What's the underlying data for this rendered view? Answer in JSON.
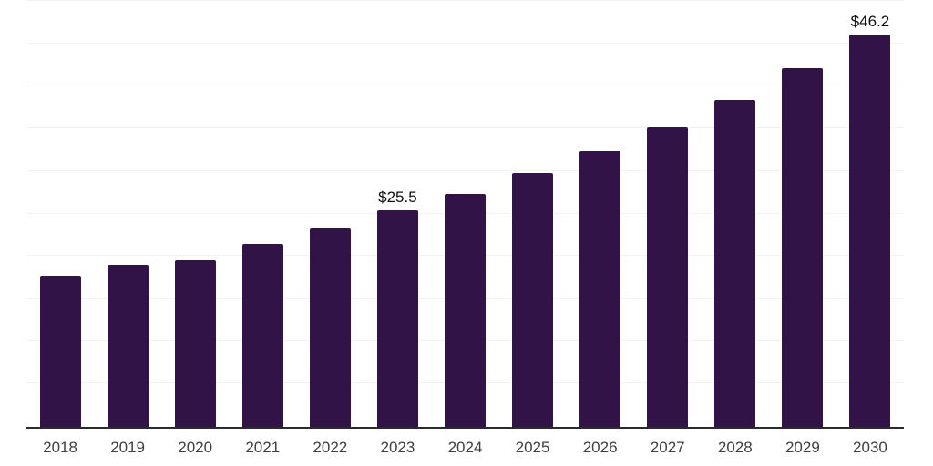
{
  "chart_data": {
    "type": "bar",
    "title": "",
    "xlabel": "",
    "ylabel": "",
    "categories": [
      "2018",
      "2019",
      "2020",
      "2021",
      "2022",
      "2023",
      "2024",
      "2025",
      "2026",
      "2027",
      "2028",
      "2029",
      "2030"
    ],
    "values": [
      17.8,
      19.1,
      19.6,
      21.5,
      23.4,
      25.5,
      27.4,
      29.9,
      32.5,
      35.2,
      38.4,
      42.2,
      46.2
    ],
    "data_labels": [
      {
        "category": "2023",
        "text": "$25.5"
      },
      {
        "category": "2030",
        "text": "$46.2"
      }
    ],
    "ylim": [
      0,
      50
    ],
    "grid": "horizontal, interval 5, no y-axis tick labels",
    "legend": "none",
    "colors": {
      "bar": "#321347",
      "gridline": "#f3f3f3",
      "axis_line": "#2b2b2b",
      "tick_label": "#404040",
      "data_label": "#111111",
      "background": "#ffffff"
    }
  }
}
